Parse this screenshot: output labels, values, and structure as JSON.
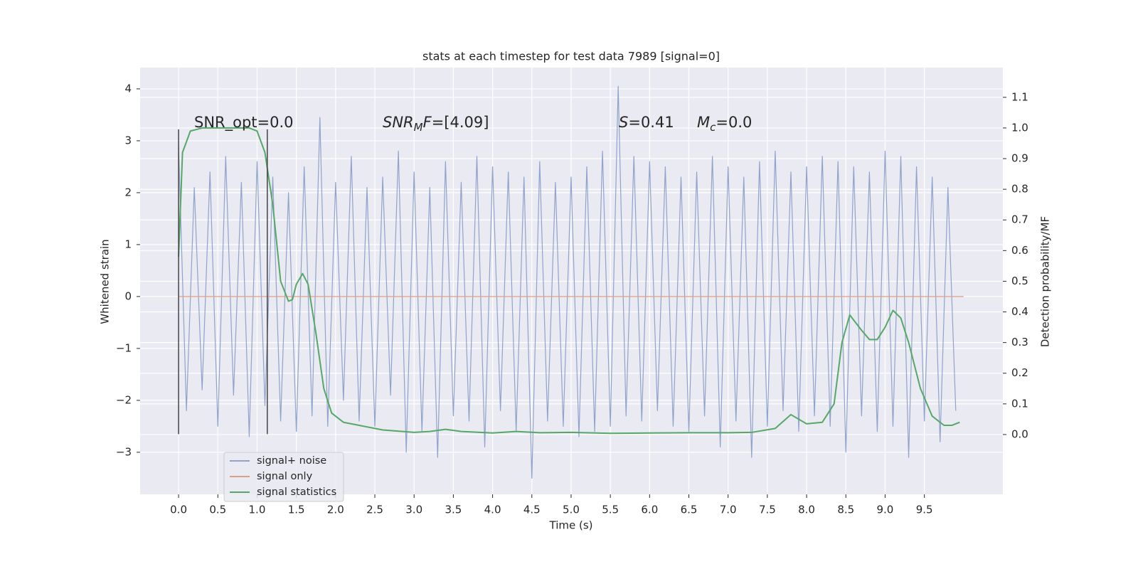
{
  "chart_data": {
    "type": "line",
    "title": "stats at each timestep for test data 7989 [signal=0]",
    "xlabel": "Time (s)",
    "ylabel": "Whitened strain",
    "y2label": "Detection probability/MF",
    "xlim": [
      -0.49,
      10.5
    ],
    "ylim": [
      -3.81,
      4.41
    ],
    "y2lim": [
      -0.195,
      1.197
    ],
    "xticks": [
      {
        "value": 0,
        "label": "0.0"
      },
      {
        "value": 0.5,
        "label": "0.5"
      },
      {
        "value": 1,
        "label": "1.0"
      },
      {
        "value": 1.5,
        "label": "1.5"
      },
      {
        "value": 2,
        "label": "2.0"
      },
      {
        "value": 2.5,
        "label": "2.5"
      },
      {
        "value": 3,
        "label": "3.0"
      },
      {
        "value": 3.5,
        "label": "3.5"
      },
      {
        "value": 4,
        "label": "4.0"
      },
      {
        "value": 4.5,
        "label": "4.5"
      },
      {
        "value": 5,
        "label": "5.0"
      },
      {
        "value": 5.5,
        "label": "5.5"
      },
      {
        "value": 6,
        "label": "6.0"
      },
      {
        "value": 6.5,
        "label": "6.5"
      },
      {
        "value": 7,
        "label": "7.0"
      },
      {
        "value": 7.5,
        "label": "7.5"
      },
      {
        "value": 8,
        "label": "8.0"
      },
      {
        "value": 8.5,
        "label": "8.5"
      },
      {
        "value": 9,
        "label": "9.0"
      },
      {
        "value": 9.5,
        "label": "9.5"
      }
    ],
    "yticks": [
      4,
      3,
      2,
      1,
      0,
      {
        "value": -1,
        "label": "−1"
      },
      {
        "value": -2,
        "label": "−2"
      },
      {
        "value": -3,
        "label": "−3"
      }
    ],
    "y2ticks": [
      {
        "value": 0,
        "label": "0.0"
      },
      {
        "value": 0.1,
        "label": "0.1"
      },
      {
        "value": 0.2,
        "label": "0.2"
      },
      {
        "value": 0.3,
        "label": "0.3"
      },
      {
        "value": 0.4,
        "label": "0.4"
      },
      {
        "value": 0.5,
        "label": "0.5"
      },
      {
        "value": 0.6,
        "label": "0.6"
      },
      {
        "value": 0.7,
        "label": "0.7"
      },
      {
        "value": 0.8,
        "label": "0.8"
      },
      {
        "value": 0.9,
        "label": "0.9"
      },
      {
        "value": 1.0,
        "label": "1.0"
      },
      {
        "value": 1.1,
        "label": "1.1"
      }
    ],
    "grid": true,
    "legend": "lower left",
    "vlines": [
      0,
      1.13
    ],
    "vline_span": [
      -2.65,
      3.22
    ],
    "annotations": [
      [
        {
          "text": "SNR_opt=0.0"
        }
      ],
      [
        {
          "text": "SNR",
          "italic": true
        },
        {
          "text": "M",
          "italic": true,
          "sub": true
        },
        {
          "text": "F",
          "italic": true
        },
        {
          "text": "=[4.09]"
        }
      ],
      [
        {
          "text": "S",
          "italic": true
        },
        {
          "text": "=0.41"
        }
      ],
      [
        {
          "text": "M",
          "italic": true
        },
        {
          "text": "c",
          "italic": true,
          "sub": true
        },
        {
          "text": "=0.0"
        }
      ]
    ],
    "series": [
      {
        "name": "signal+ noise",
        "color": "#8fa3cc",
        "x": [
          0.0,
          0.1,
          0.2,
          0.3,
          0.4,
          0.5,
          0.6,
          0.7,
          0.8,
          0.9,
          1.0,
          1.1,
          1.2,
          1.3,
          1.4,
          1.5,
          1.6,
          1.7,
          1.8,
          1.9,
          2.0,
          2.1,
          2.2,
          2.3,
          2.4,
          2.5,
          2.6,
          2.7,
          2.8,
          2.9,
          3.0,
          3.1,
          3.2,
          3.3,
          3.4,
          3.5,
          3.6,
          3.7,
          3.8,
          3.9,
          4.0,
          4.1,
          4.2,
          4.3,
          4.4,
          4.5,
          4.6,
          4.7,
          4.8,
          4.9,
          5.0,
          5.1,
          5.2,
          5.3,
          5.4,
          5.5,
          5.6,
          5.7,
          5.8,
          5.9,
          6.0,
          6.1,
          6.2,
          6.3,
          6.4,
          6.5,
          6.6,
          6.7,
          6.8,
          6.9,
          7.0,
          7.1,
          7.2,
          7.3,
          7.4,
          7.5,
          7.6,
          7.7,
          7.8,
          7.9,
          8.0,
          8.1,
          8.2,
          8.3,
          8.4,
          8.5,
          8.6,
          8.7,
          8.8,
          8.9,
          9.0,
          9.1,
          9.2,
          9.3,
          9.4,
          9.5,
          9.6,
          9.7,
          9.8,
          9.9
        ],
        "values": [
          2.9,
          -2.2,
          2.1,
          -1.8,
          2.4,
          -2.5,
          2.7,
          -1.9,
          2.2,
          -2.7,
          2.6,
          -2.1,
          2.3,
          -2.4,
          2.0,
          -2.6,
          2.5,
          -2.3,
          3.45,
          -2.5,
          2.2,
          -2.0,
          2.7,
          -2.4,
          2.1,
          -2.5,
          2.3,
          -1.9,
          2.8,
          -3.0,
          2.4,
          -2.6,
          2.1,
          -3.1,
          2.6,
          -2.3,
          2.2,
          -2.4,
          2.7,
          -2.9,
          2.5,
          -2.2,
          2.4,
          -2.6,
          2.3,
          -3.5,
          2.6,
          -2.4,
          2.2,
          -2.5,
          2.3,
          -2.7,
          2.5,
          -2.6,
          2.8,
          -2.5,
          4.05,
          -2.3,
          2.7,
          -2.4,
          2.6,
          -2.2,
          2.5,
          -2.5,
          2.3,
          -2.6,
          2.4,
          -2.3,
          2.7,
          -2.9,
          2.5,
          -2.4,
          2.3,
          -3.1,
          2.6,
          -2.5,
          2.8,
          -2.2,
          2.4,
          -2.6,
          2.5,
          -2.3,
          2.7,
          -2.5,
          2.6,
          -3.0,
          2.5,
          -2.3,
          2.4,
          -2.6,
          2.8,
          -2.5,
          2.7,
          -3.1,
          2.5,
          -2.4,
          2.3,
          -2.8,
          2.1,
          -2.2
        ]
      },
      {
        "name": "signal only",
        "color": "#dd9f86",
        "x": [
          0,
          10
        ],
        "values": [
          0,
          0
        ]
      },
      {
        "name": "signal statistics",
        "color": "#55a868",
        "axis": "y2",
        "x": [
          0.0,
          0.05,
          0.15,
          0.3,
          0.5,
          0.7,
          0.9,
          1.0,
          1.1,
          1.2,
          1.3,
          1.4,
          1.45,
          1.5,
          1.58,
          1.65,
          1.75,
          1.85,
          1.95,
          2.1,
          2.3,
          2.6,
          3.0,
          3.2,
          3.4,
          3.6,
          4.0,
          4.3,
          4.6,
          5.0,
          5.5,
          6.0,
          6.5,
          7.0,
          7.3,
          7.6,
          7.8,
          8.0,
          8.2,
          8.35,
          8.45,
          8.55,
          8.7,
          8.8,
          8.9,
          9.0,
          9.1,
          9.2,
          9.3,
          9.45,
          9.6,
          9.75,
          9.85,
          9.95
        ],
        "values": [
          0.58,
          0.92,
          0.99,
          1.0,
          1.0,
          1.0,
          1.0,
          0.99,
          0.92,
          0.75,
          0.5,
          0.435,
          0.44,
          0.49,
          0.525,
          0.49,
          0.33,
          0.15,
          0.07,
          0.04,
          0.03,
          0.015,
          0.007,
          0.01,
          0.017,
          0.01,
          0.005,
          0.01,
          0.006,
          0.007,
          0.004,
          0.005,
          0.006,
          0.006,
          0.007,
          0.02,
          0.065,
          0.035,
          0.04,
          0.1,
          0.3,
          0.39,
          0.34,
          0.31,
          0.31,
          0.35,
          0.405,
          0.38,
          0.3,
          0.15,
          0.06,
          0.03,
          0.03,
          0.04
        ]
      }
    ]
  }
}
